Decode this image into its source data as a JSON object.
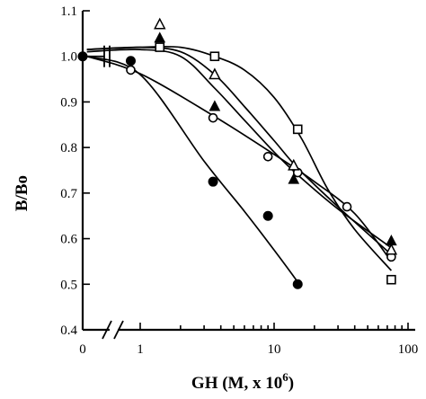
{
  "chart_data": {
    "type": "scatter",
    "xlabel": "GH (M, x 10",
    "xlabel_sup": "6",
    "xlabel_close": ")",
    "ylabel": "B/Bo",
    "x_scale": "log with axis break (0 shown before break)",
    "xlim": [
      0.8,
      100
    ],
    "ylim": [
      0.4,
      1.1
    ],
    "x_ticks": [
      "0",
      "1",
      "10",
      "100"
    ],
    "y_ticks": [
      "0.4",
      "0.5",
      "0.6",
      "0.7",
      "0.8",
      "0.9",
      "1.0",
      "1.1"
    ],
    "zero_point": {
      "x": 0,
      "y": 1.0
    },
    "series": [
      {
        "marker": "filled-circle",
        "points": [
          [
            0.85,
            0.99
          ],
          [
            3.5,
            0.725
          ],
          [
            9,
            0.65
          ],
          [
            15,
            0.5
          ]
        ],
        "curve": [
          [
            0.4,
            1.0
          ],
          [
            1.0,
            0.96
          ],
          [
            3.0,
            0.77
          ],
          [
            6,
            0.66
          ],
          [
            10,
            0.575
          ],
          [
            15,
            0.505
          ]
        ]
      },
      {
        "marker": "open-circle",
        "points": [
          [
            0.85,
            0.97
          ],
          [
            3.5,
            0.865
          ],
          [
            9,
            0.78
          ],
          [
            15,
            0.745
          ],
          [
            35,
            0.67
          ],
          [
            75,
            0.56
          ]
        ],
        "curve": [
          [
            0.4,
            1.0
          ],
          [
            1.0,
            0.962
          ],
          [
            3.5,
            0.87
          ],
          [
            10,
            0.785
          ],
          [
            20,
            0.725
          ],
          [
            40,
            0.655
          ],
          [
            75,
            0.55
          ]
        ]
      },
      {
        "marker": "open-square",
        "points": [
          [
            1.4,
            1.02
          ],
          [
            3.6,
            1.0
          ],
          [
            15,
            0.84
          ],
          [
            75,
            0.51
          ]
        ],
        "curve": [
          [
            0.4,
            1.015
          ],
          [
            1.0,
            1.02
          ],
          [
            2.0,
            1.02
          ],
          [
            3.6,
            1.0
          ],
          [
            6,
            0.97
          ],
          [
            10,
            0.91
          ],
          [
            16,
            0.82
          ],
          [
            25,
            0.71
          ],
          [
            40,
            0.62
          ],
          [
            75,
            0.53
          ]
        ]
      },
      {
        "marker": "open-triangle",
        "points": [
          [
            1.4,
            1.07
          ],
          [
            3.6,
            0.96
          ],
          [
            14,
            0.76
          ],
          [
            75,
            0.575
          ]
        ],
        "curve": [
          [
            0.4,
            1.015
          ],
          [
            1.0,
            1.02
          ],
          [
            2.0,
            1.01
          ],
          [
            3.6,
            0.96
          ],
          [
            6,
            0.89
          ],
          [
            10,
            0.815
          ],
          [
            15,
            0.755
          ],
          [
            30,
            0.67
          ],
          [
            75,
            0.565
          ]
        ]
      },
      {
        "marker": "filled-triangle",
        "points": [
          [
            1.4,
            1.04
          ],
          [
            3.6,
            0.89
          ],
          [
            14,
            0.73
          ],
          [
            75,
            0.595
          ]
        ],
        "curve": [
          [
            0.4,
            1.01
          ],
          [
            1.0,
            1.015
          ],
          [
            2.0,
            1.0
          ],
          [
            3.6,
            0.93
          ],
          [
            6,
            0.86
          ],
          [
            10,
            0.79
          ],
          [
            15,
            0.74
          ],
          [
            30,
            0.665
          ],
          [
            75,
            0.58
          ]
        ]
      }
    ]
  }
}
